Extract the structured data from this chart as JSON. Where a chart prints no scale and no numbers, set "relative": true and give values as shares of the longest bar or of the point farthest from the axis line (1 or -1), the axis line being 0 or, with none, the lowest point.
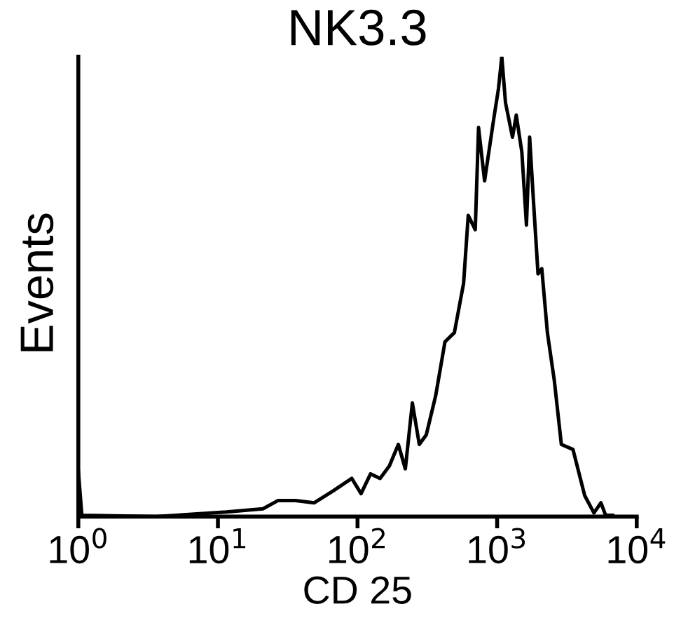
{
  "chart_data": {
    "type": "line",
    "title": "NK3.3",
    "xlabel": "CD 25",
    "ylabel": "Events",
    "relative": true,
    "log": "x",
    "xlim": [
      1,
      10000
    ],
    "xticks": [
      {
        "value": 1,
        "label": "10$^{0}$"
      },
      {
        "value": 10,
        "label": "10$^{1}$"
      },
      {
        "value": 100,
        "label": "10$^{2}$"
      },
      {
        "value": 1000,
        "label": "10$^{3}$"
      },
      {
        "value": 10000,
        "label": "10$^{4}$"
      }
    ],
    "grid": false,
    "legend": false,
    "marker": "none",
    "line_style": "solid",
    "series": [
      {
        "color": "#000000",
        "x": [
          1,
          1.06,
          3.6,
          11.5,
          21,
          27,
          36,
          49,
          67,
          91,
          106,
          124,
          145,
          169,
          196,
          220,
          247,
          277,
          311,
          363,
          423,
          494,
          575,
          621,
          697,
          736,
          813,
          948,
          1023,
          1080,
          1148,
          1288,
          1371,
          1503,
          1622,
          1710,
          1820,
          1963,
          2089,
          2291,
          2570,
          2884,
          3493,
          4236,
          4936,
          5540,
          5980,
          6710
        ],
        "values": [
          0.1,
          0.003,
          0,
          0.01,
          0.017,
          0.035,
          0.035,
          0.03,
          0.056,
          0.083,
          0.05,
          0.093,
          0.083,
          0.11,
          0.157,
          0.104,
          0.247,
          0.157,
          0.178,
          0.263,
          0.38,
          0.4,
          0.507,
          0.655,
          0.624,
          0.846,
          0.73,
          0.867,
          0.931,
          1.0,
          0.9,
          0.825,
          0.873,
          0.793,
          0.634,
          0.825,
          0.687,
          0.528,
          0.539,
          0.4,
          0.295,
          0.157,
          0.146,
          0.046,
          0.008,
          0.03,
          0.003,
          0.003
        ]
      }
    ]
  }
}
